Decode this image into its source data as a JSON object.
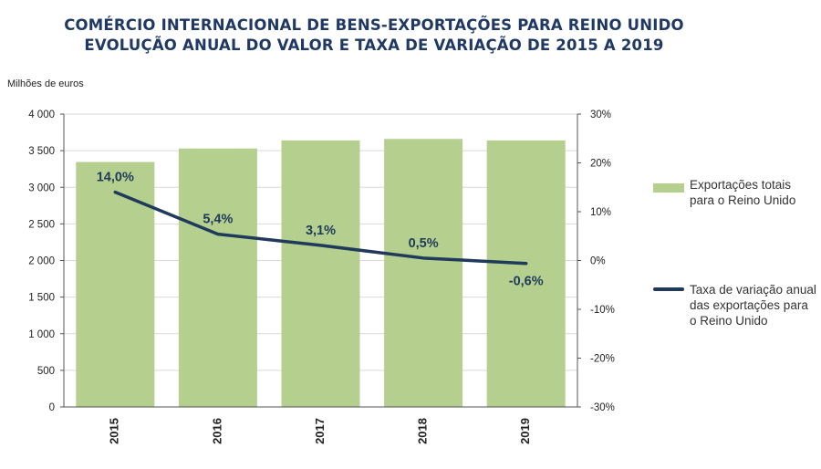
{
  "chart_data": {
    "type": "bar",
    "title": "COMÉRCIO INTERNACIONAL  DE BENS-EXPORTAÇÕES  PARA REINO UNIDO",
    "subtitle": "EVOLUÇÃO ANUAL DO VALOR  E TAXA DE VARIAÇÃO DE 2015 A 2019",
    "ylabel": "Milhões de euros",
    "categories": [
      "2015",
      "2016",
      "2017",
      "2018",
      "2019"
    ],
    "ylim": [
      0,
      4000
    ],
    "y_ticks": [
      "0",
      "500",
      "1 000",
      "1 500",
      "2 000",
      "2 500",
      "3 000",
      "3 500",
      "4 000"
    ],
    "y2lim": [
      -30,
      30
    ],
    "y2_ticks": [
      "-30%",
      "-20%",
      "-10%",
      "0%",
      "10%",
      "20%",
      "30%"
    ],
    "grid": true,
    "legend_position": "right",
    "series": [
      {
        "name": "Exportações totais para o Reino Unido",
        "type": "bar",
        "axis": "left",
        "color": "#b5cf8e",
        "values": [
          3345,
          3530,
          3640,
          3660,
          3640
        ]
      },
      {
        "name": "Taxa de variação anual das exportações para o Reino Unido",
        "type": "line",
        "axis": "right",
        "color": "#1f3a5a",
        "values": [
          14.0,
          5.4,
          3.1,
          0.5,
          -0.6
        ],
        "labels": [
          "14,0%",
          "5,4%",
          "3,1%",
          "0,5%",
          "-0,6%"
        ]
      }
    ]
  }
}
